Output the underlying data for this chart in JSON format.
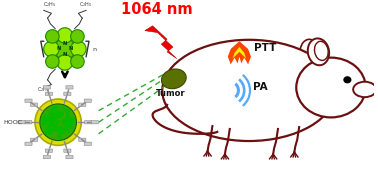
{
  "laser_text": "1064 nm",
  "laser_color": "#FF0000",
  "ptt_text": "PTT",
  "pa_text": "PA",
  "tumor_text": "Tumor",
  "mouse_body_color": "#6B1010",
  "background_color": "#FFFFFF",
  "dashed_line_color": "#33AA33",
  "sound_wave_color": "#55AAFF",
  "figsize": [
    3.78,
    1.82
  ],
  "dpi": 100
}
